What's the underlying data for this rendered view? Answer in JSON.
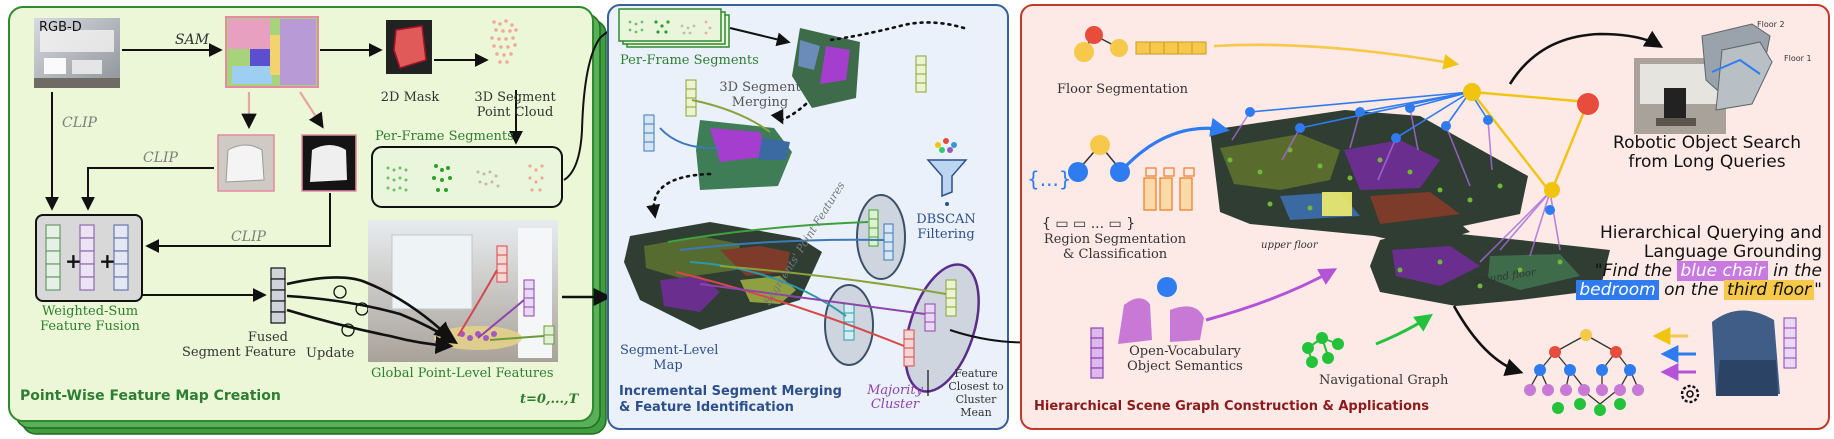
{
  "colors": {
    "panel1_bg": "#ebf7d6",
    "panel1_border": "#2f8a2f",
    "panel1_shadow": "#2e8b2e",
    "panel2_bg": "#eaf1fb",
    "panel2_border": "#3a5f9a",
    "panel3_bg": "#fde9e6",
    "panel3_border": "#c0392b",
    "green_text": "#2e7d32",
    "blue_title": "#2c4f8a",
    "red_title": "#8b1a1a",
    "purple": "#8e44ad",
    "orange": "#f5a623",
    "yellow": "#f1c40f"
  },
  "panel1": {
    "title": "Point-Wise Feature Map Creation",
    "rgbd": "RGB-D",
    "sam": "SAM",
    "clip1": "CLIP",
    "clip2": "CLIP",
    "clip3": "CLIP",
    "mask2d": "2D Mask",
    "seg3d_line1": "3D Segment",
    "seg3d_line2": "Point Cloud",
    "per_frame": "Per-Frame Segments",
    "wsum_line1": "Weighted-Sum",
    "wsum_line2": "Feature Fusion",
    "fused_line1": "Fused",
    "fused_line2": "Segment Feature",
    "update": "Update",
    "global": "Global Point-Level Features",
    "time": "t=0,...,T"
  },
  "panel2": {
    "title_line1": "Incremental Segment Merging",
    "title_line2": "& Feature Identification",
    "per_frame": "Per-Frame Segments",
    "merge_line1": "3D Segment",
    "merge_line2": "Merging",
    "dbscan_line1": "DBSCAN",
    "dbscan_line2": "Filtering",
    "seglevel_line1": "Segment-Level",
    "seglevel_line2": "Map",
    "segpoint": "Segments' Point Features",
    "majority_line1": "Majority",
    "majority_line2": "Cluster",
    "closest_line1": "Feature",
    "closest_line2": "Closest to",
    "closest_line3": "Cluster",
    "closest_line4": "Mean"
  },
  "panel3": {
    "title": "Hierarchical Scene Graph Construction & Applications",
    "floor": "Floor Segmentation",
    "region_line1": "Region Segmentation",
    "region_line2": "& Classification",
    "open_line1": "Open-Vocabulary",
    "open_line2": "Object Semantics",
    "nav": "Navigational Graph",
    "upper": "upper floor",
    "ground": "ground floor",
    "floor2": "Floor 2",
    "floor1": "Floor 1",
    "robot_line1": "Robotic Object Search",
    "robot_line2": "from Long Queries",
    "hq_line1": "Hierarchical Querying and",
    "hq_line2": "Language Grounding",
    "q1": "\"Find the ",
    "q2": "blue chair",
    "q3": " in the",
    "q4": "bedroom",
    "q5": " on the ",
    "q6": "third floor",
    "q7": "\""
  }
}
